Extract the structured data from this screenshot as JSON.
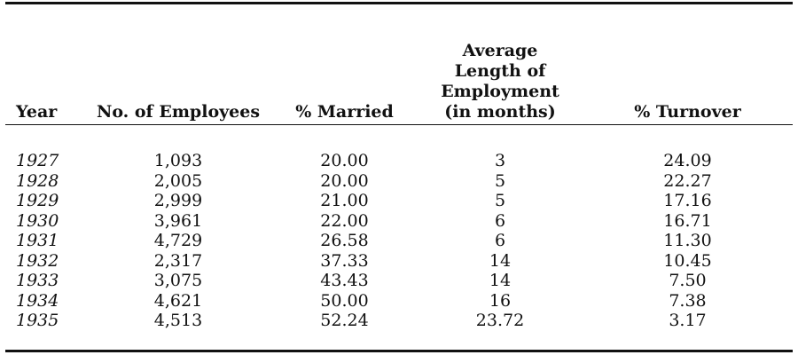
{
  "table": {
    "headers": {
      "year": "Year",
      "employees": "No. of Employees",
      "married": "% Married",
      "avg_length": [
        "Average",
        "Length of",
        "Employment",
        "(in months)"
      ],
      "turnover": "% Turnover"
    },
    "rows": [
      {
        "year": "1927",
        "employees": "1,093",
        "married": "20.00",
        "avg_length": "3",
        "turnover": "24.09"
      },
      {
        "year": "1928",
        "employees": "2,005",
        "married": "20.00",
        "avg_length": "5",
        "turnover": "22.27"
      },
      {
        "year": "1929",
        "employees": "2,999",
        "married": "21.00",
        "avg_length": "5",
        "turnover": "17.16"
      },
      {
        "year": "1930",
        "employees": "3,961",
        "married": "22.00",
        "avg_length": "6",
        "turnover": "16.71"
      },
      {
        "year": "1931",
        "employees": "4,729",
        "married": "26.58",
        "avg_length": "6",
        "turnover": "11.30"
      },
      {
        "year": "1932",
        "employees": "2,317",
        "married": "37.33",
        "avg_length": "14",
        "turnover": "10.45"
      },
      {
        "year": "1933",
        "employees": "3,075",
        "married": "43.43",
        "avg_length": "14",
        "turnover": "7.50"
      },
      {
        "year": "1934",
        "employees": "4,621",
        "married": "50.00",
        "avg_length": "16",
        "turnover": "7.38"
      },
      {
        "year": "1935",
        "employees": "4,513",
        "married": "52.24",
        "avg_length": "23.72",
        "turnover": "3.17"
      }
    ]
  }
}
